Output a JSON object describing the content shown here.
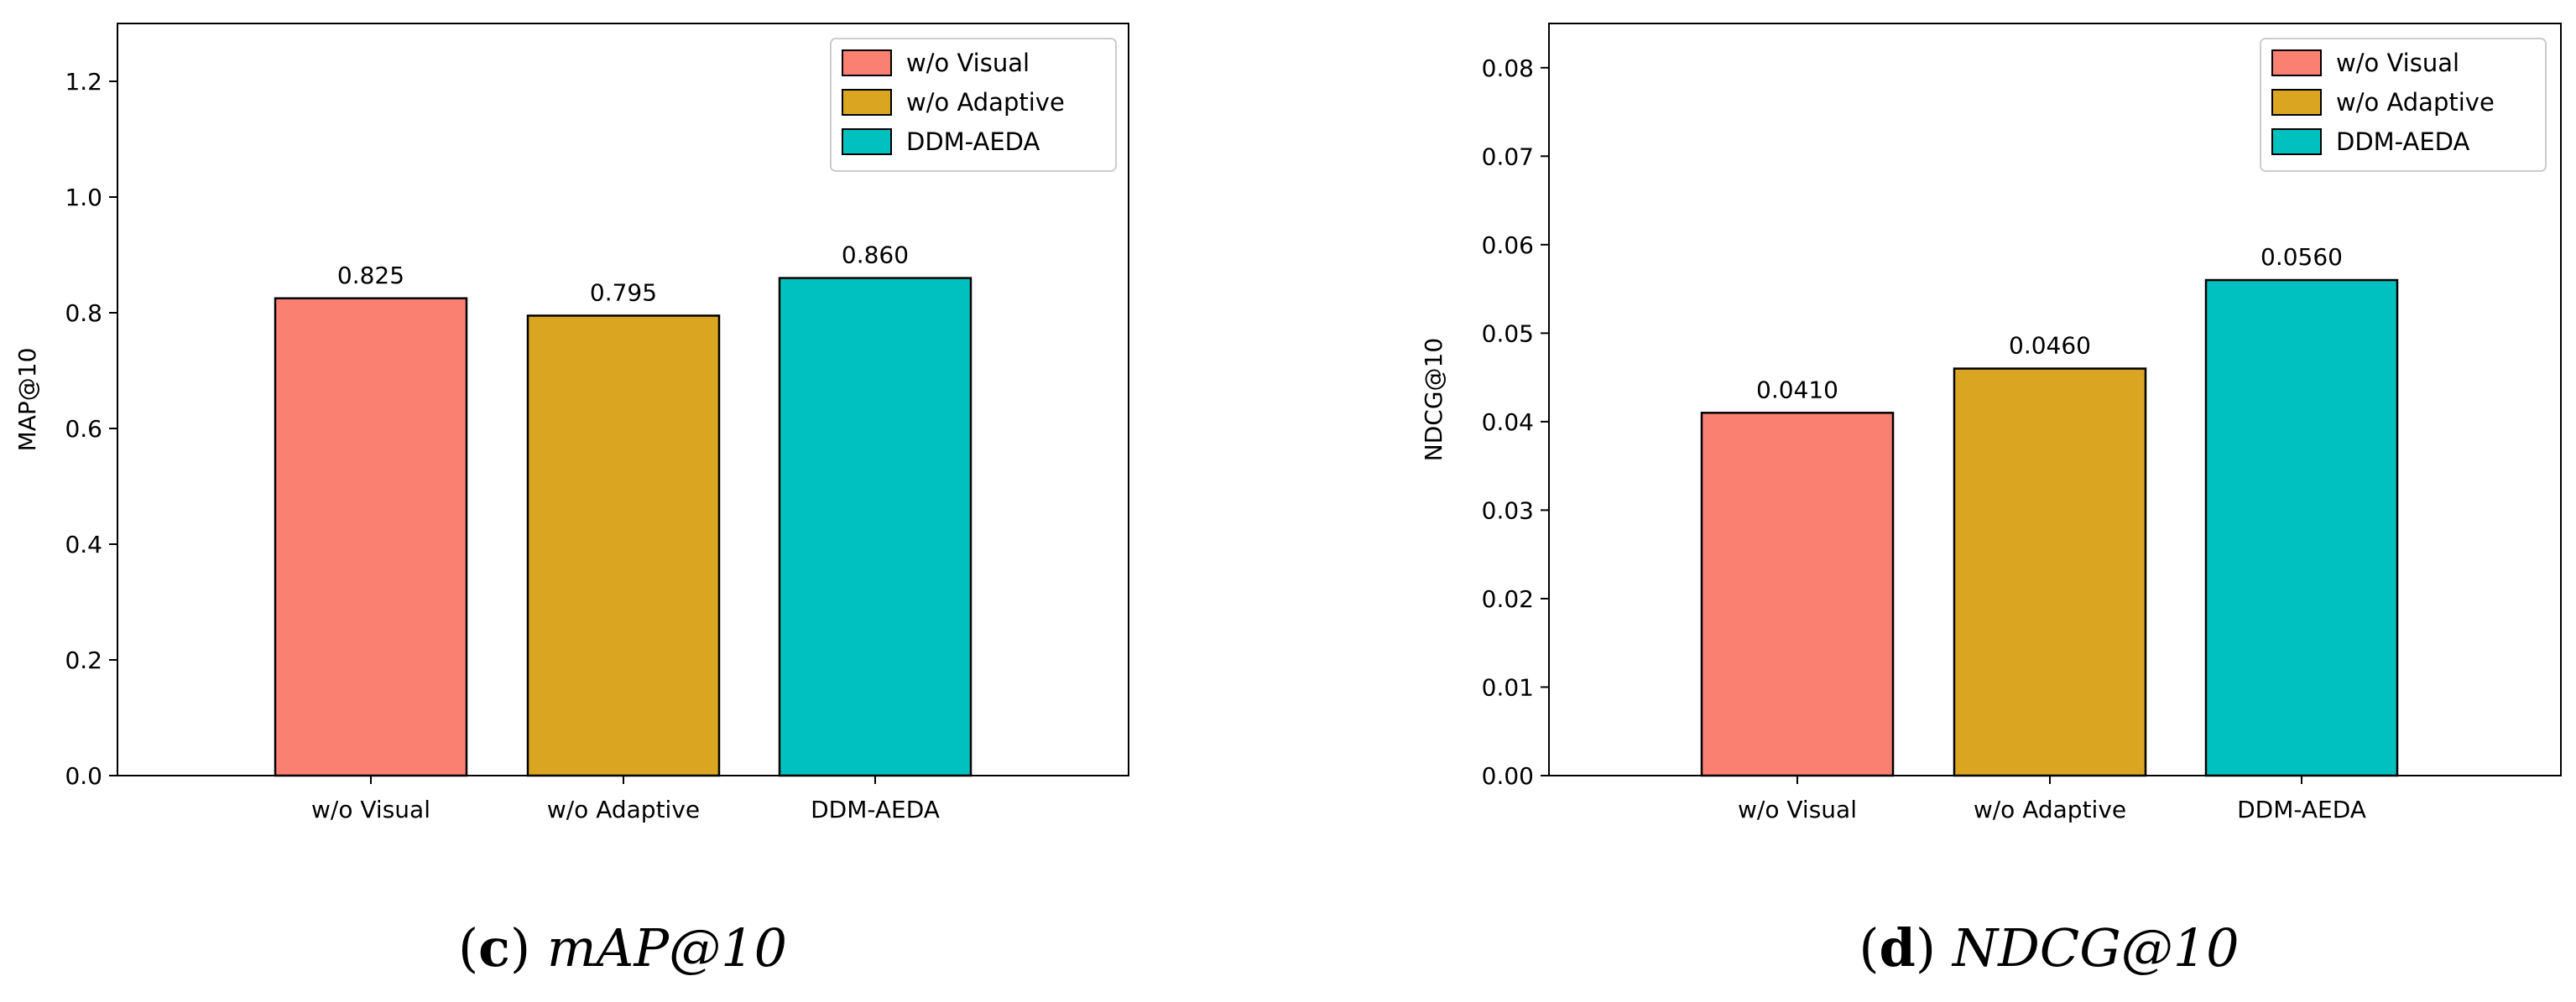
{
  "chart_data": [
    {
      "type": "bar",
      "caption_letter": "c",
      "caption_metric": "mAP@10",
      "title": "",
      "xlabel": "",
      "ylabel": "MAP@10",
      "categories": [
        "w/o Visual",
        "w/o Adaptive",
        "DDM-AEDA"
      ],
      "values": [
        0.825,
        0.795,
        0.86
      ],
      "value_labels": [
        "0.825",
        "0.795",
        "0.860"
      ],
      "colors": [
        "#FA8072",
        "#DAA520",
        "#00C0C0"
      ],
      "ylim": [
        0,
        1.3
      ],
      "yticks": [
        0.0,
        0.2,
        0.4,
        0.6,
        0.8,
        1.0,
        1.2
      ],
      "ytick_labels": [
        "0.0",
        "0.2",
        "0.4",
        "0.6",
        "0.8",
        "1.0",
        "1.2"
      ],
      "grid": false,
      "legend": {
        "position": "top-right",
        "entries": [
          "w/o Visual",
          "w/o Adaptive",
          "DDM-AEDA"
        ]
      }
    },
    {
      "type": "bar",
      "caption_letter": "d",
      "caption_metric": "NDCG@10",
      "title": "",
      "xlabel": "",
      "ylabel": "NDCG@10",
      "categories": [
        "w/o Visual",
        "w/o Adaptive",
        "DDM-AEDA"
      ],
      "values": [
        0.041,
        0.046,
        0.056
      ],
      "value_labels": [
        "0.0410",
        "0.0460",
        "0.0560"
      ],
      "colors": [
        "#FA8072",
        "#DAA520",
        "#00C0C0"
      ],
      "ylim": [
        0,
        0.085
      ],
      "yticks": [
        0.0,
        0.01,
        0.02,
        0.03,
        0.04,
        0.05,
        0.06,
        0.07,
        0.08
      ],
      "ytick_labels": [
        "0.00",
        "0.01",
        "0.02",
        "0.03",
        "0.04",
        "0.05",
        "0.06",
        "0.07",
        "0.08"
      ],
      "grid": false,
      "legend": {
        "position": "top-right",
        "entries": [
          "w/o Visual",
          "w/o Adaptive",
          "DDM-AEDA"
        ]
      }
    }
  ]
}
